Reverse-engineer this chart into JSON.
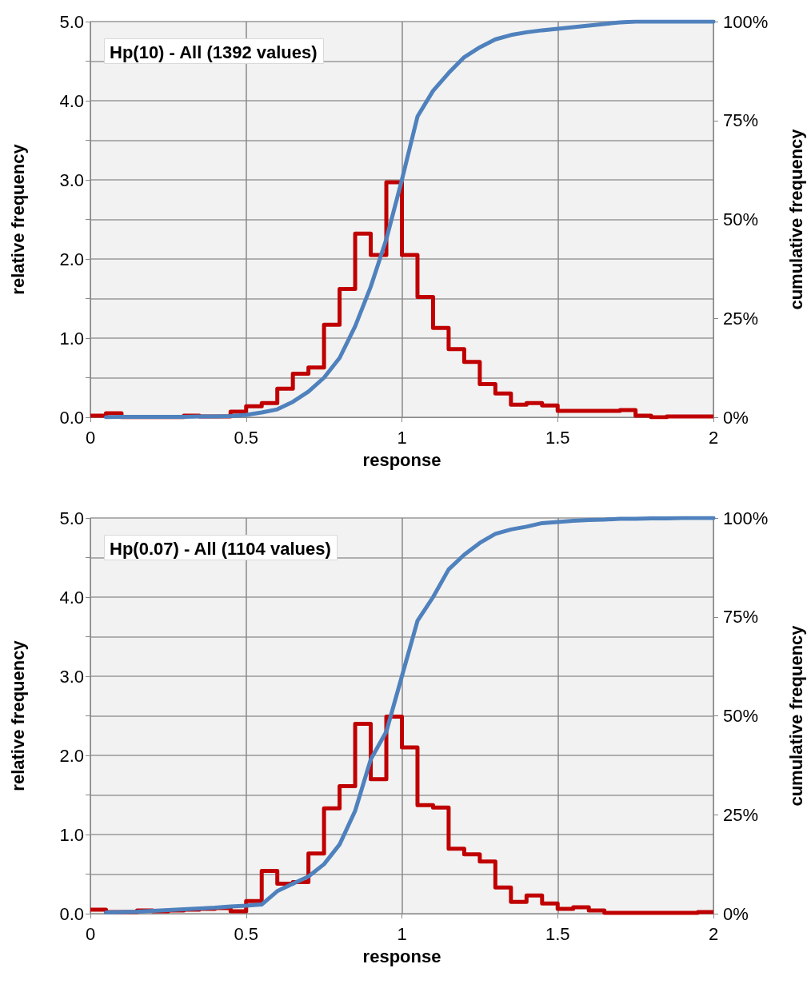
{
  "chart_data": [
    {
      "type": "histogram",
      "title": "Hp(10) - All (1392 values)",
      "xlabel": "response",
      "ylabel": "relative frequency",
      "y2label": "cumulative frequency",
      "bins": [
        0,
        0.05,
        0.1,
        0.15,
        0.2,
        0.25,
        0.3,
        0.35,
        0.4,
        0.45,
        0.5,
        0.55,
        0.6,
        0.65,
        0.7,
        0.75,
        0.8,
        0.85,
        0.9,
        0.95,
        1,
        1.05,
        1.1,
        1.15,
        1.2,
        1.25,
        1.3,
        1.35,
        1.4,
        1.45,
        1.5,
        1.55,
        1.6,
        1.65,
        1.7,
        1.75,
        1.8,
        1.85,
        1.9,
        1.95,
        2
      ],
      "series": [
        {
          "color": "#c00000",
          "values": [
            0.02,
            0.05,
            0,
            0,
            0,
            0,
            0.02,
            0.01,
            0.01,
            0.07,
            0.14,
            0.18,
            0.36,
            0.55,
            0.63,
            1.17,
            1.62,
            2.32,
            2.05,
            2.97,
            2.05,
            1.52,
            1.13,
            0.86,
            0.7,
            0.42,
            0.3,
            0.16,
            0.18,
            0.15,
            0.08,
            0.08,
            0.08,
            0.08,
            0.09,
            0.02,
            0,
            0.01,
            0.01,
            0.01
          ]
        },
        {
          "type": "line",
          "axis": "y2",
          "color": "#4f81bd",
          "x": [
            0.05,
            0.1,
            0.15,
            0.2,
            0.25,
            0.3,
            0.35,
            0.4,
            0.45,
            0.5,
            0.55,
            0.6,
            0.65,
            0.7,
            0.75,
            0.8,
            0.85,
            0.9,
            0.95,
            1,
            1.05,
            1.1,
            1.15,
            1.2,
            1.25,
            1.3,
            1.35,
            1.4,
            1.45,
            1.5,
            1.55,
            1.6,
            1.65,
            1.7,
            1.75,
            1.8,
            1.85,
            1.9,
            1.95,
            2
          ],
          "values": [
            0,
            0.1,
            0.1,
            0.1,
            0.1,
            0.1,
            0.2,
            0.2,
            0.3,
            0.6,
            1.2,
            2,
            3.9,
            6.5,
            10,
            15,
            23,
            33,
            45,
            60,
            76,
            82.5,
            87,
            91,
            93.5,
            95.5,
            96.6,
            97.3,
            97.8,
            98.2,
            98.6,
            99,
            99.4,
            99.8,
            100,
            100,
            100,
            100,
            100,
            100
          ]
        }
      ],
      "xlim": [
        0,
        2
      ],
      "xticks": [
        0,
        0.5,
        1,
        1.5,
        2
      ],
      "ylim": [
        0,
        5
      ],
      "yticks": [
        {
          "value": 0,
          "label": "0.0"
        },
        {
          "value": 0.5,
          "label": null
        },
        {
          "value": 1,
          "label": "1.0"
        },
        {
          "value": 1.5,
          "label": null
        },
        {
          "value": 2,
          "label": "2.0"
        },
        {
          "value": 2.5,
          "label": null
        },
        {
          "value": 3,
          "label": "3.0"
        },
        {
          "value": 3.5,
          "label": null
        },
        {
          "value": 4,
          "label": "4.0"
        },
        {
          "value": 4.5,
          "label": null
        },
        {
          "value": 5,
          "label": "5.0"
        }
      ],
      "y2lim": [
        0,
        100
      ],
      "y2ticks": [
        {
          "value": 0,
          "label": "0%"
        },
        {
          "value": 25,
          "label": "25%"
        },
        {
          "value": 50,
          "label": "50%"
        },
        {
          "value": 75,
          "label": "75%"
        },
        {
          "value": 100,
          "label": "100%"
        }
      ],
      "grid": true,
      "marker": "none",
      "line_style": "solid"
    },
    {
      "type": "histogram",
      "title": "Hp(0.07) - All (1104 values)",
      "xlabel": "response",
      "ylabel": "relative frequency",
      "y2label": "cumulative frequency",
      "bins": [
        0,
        0.05,
        0.1,
        0.15,
        0.2,
        0.25,
        0.3,
        0.35,
        0.4,
        0.45,
        0.5,
        0.55,
        0.6,
        0.65,
        0.7,
        0.75,
        0.8,
        0.85,
        0.9,
        0.95,
        1,
        1.05,
        1.1,
        1.15,
        1.2,
        1.25,
        1.3,
        1.35,
        1.4,
        1.45,
        1.5,
        1.55,
        1.6,
        1.65,
        1.7,
        1.75,
        1.8,
        1.85,
        1.9,
        1.95,
        2
      ],
      "series": [
        {
          "color": "#c00000",
          "values": [
            0.05,
            0.02,
            0.02,
            0.04,
            0.03,
            0.04,
            0.05,
            0.06,
            0.07,
            0.03,
            0.16,
            0.54,
            0.38,
            0.4,
            0.76,
            1.33,
            1.61,
            2.4,
            1.7,
            2.49,
            2.1,
            1.37,
            1.34,
            0.82,
            0.75,
            0.66,
            0.33,
            0.15,
            0.23,
            0.13,
            0.06,
            0.08,
            0.04,
            0.01,
            0.01,
            0.01,
            0.01,
            0.01,
            0.01,
            0.02
          ]
        },
        {
          "type": "line",
          "axis": "y2",
          "color": "#4f81bd",
          "x": [
            0.05,
            0.1,
            0.15,
            0.2,
            0.25,
            0.3,
            0.35,
            0.4,
            0.45,
            0.5,
            0.55,
            0.6,
            0.65,
            0.7,
            0.75,
            0.8,
            0.85,
            0.9,
            0.95,
            1,
            1.05,
            1.1,
            1.15,
            1.2,
            1.25,
            1.3,
            1.35,
            1.4,
            1.45,
            1.5,
            1.55,
            1.6,
            1.65,
            1.7,
            1.75,
            1.8,
            1.85,
            1.9,
            1.95,
            2
          ],
          "values": [
            0.3,
            0.4,
            0.5,
            0.7,
            0.9,
            1.1,
            1.3,
            1.5,
            1.8,
            2,
            2.3,
            5.7,
            7.6,
            9.4,
            12.5,
            17.5,
            26,
            39,
            46,
            60,
            74,
            80,
            87,
            90.7,
            93.7,
            96,
            97.1,
            97.8,
            98.7,
            99,
            99.3,
            99.5,
            99.6,
            99.8,
            99.8,
            99.9,
            99.9,
            100,
            100,
            100
          ]
        }
      ],
      "xlim": [
        0,
        2
      ],
      "xticks": [
        0,
        0.5,
        1,
        1.5,
        2
      ],
      "ylim": [
        0,
        5
      ],
      "yticks": [
        {
          "value": 0,
          "label": "0.0"
        },
        {
          "value": 0.5,
          "label": null
        },
        {
          "value": 1,
          "label": "1.0"
        },
        {
          "value": 1.5,
          "label": null
        },
        {
          "value": 2,
          "label": "2.0"
        },
        {
          "value": 2.5,
          "label": null
        },
        {
          "value": 3,
          "label": "3.0"
        },
        {
          "value": 3.5,
          "label": null
        },
        {
          "value": 4,
          "label": "4.0"
        },
        {
          "value": 4.5,
          "label": null
        },
        {
          "value": 5,
          "label": "5.0"
        }
      ],
      "y2lim": [
        0,
        100
      ],
      "y2ticks": [
        {
          "value": 0,
          "label": "0%"
        },
        {
          "value": 25,
          "label": "25%"
        },
        {
          "value": 50,
          "label": "50%"
        },
        {
          "value": 75,
          "label": "75%"
        },
        {
          "value": 100,
          "label": "100%"
        }
      ],
      "grid": true,
      "marker": "none",
      "line_style": "solid"
    }
  ]
}
